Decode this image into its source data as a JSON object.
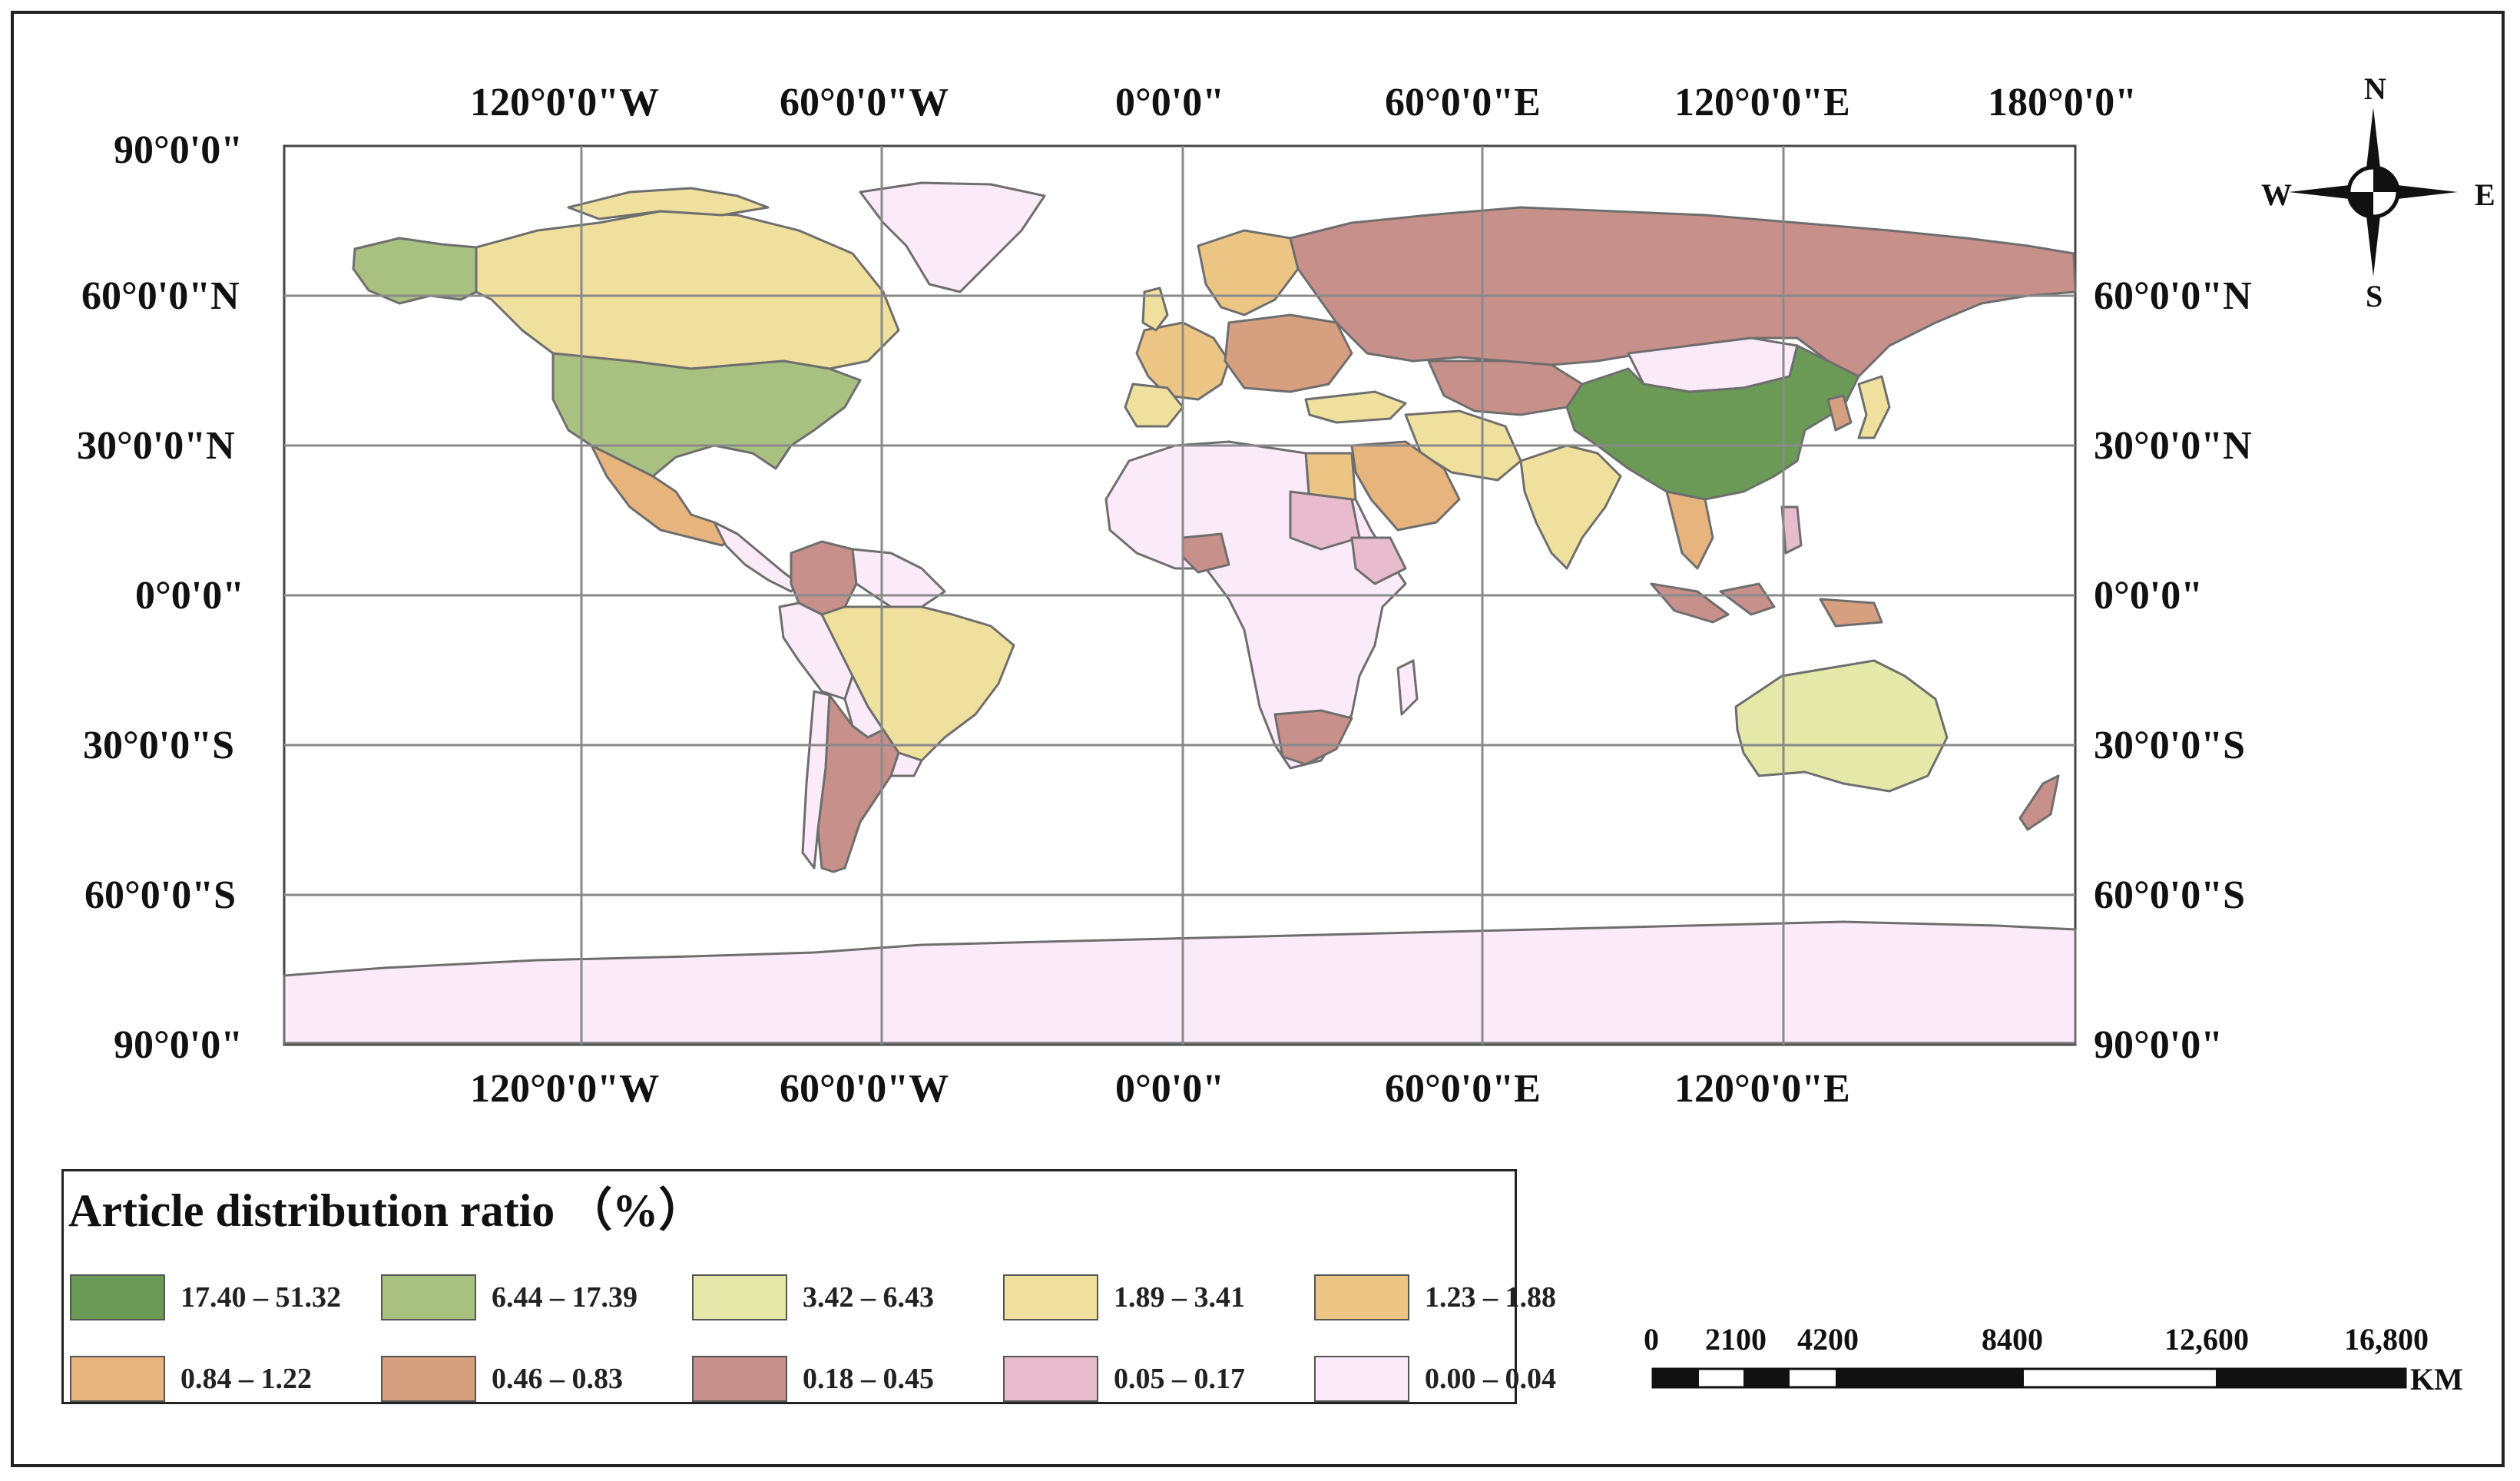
{
  "map": {
    "lon_top_labels": [
      "120°0'0\"W",
      "60°0'0\"W",
      "0°0'0\"",
      "60°0'0\"E",
      "120°0'0\"E",
      "180°0'0\""
    ],
    "lon_bottom_labels": [
      "120°0'0\"W",
      "60°0'0\"W",
      "0°0'0\"",
      "60°0'0\"E",
      "120°0'0\"E"
    ],
    "lat_left_labels": [
      "90°0'0\"",
      "60°0'0\"N",
      "30°0'0\"N",
      "0°0'0\"",
      "30°0'0\"S",
      "60°0'0\"S",
      "90°0'0\""
    ],
    "lat_right_labels": [
      "60°0'0\"N",
      "30°0'0\"N",
      "0°0'0\"",
      "30°0'0\"S",
      "60°0'0\"S",
      "90°0'0\""
    ],
    "colors": {
      "ocean": "#ffffff",
      "border": "#6e6e6e",
      "graticule": "#8a8a8a"
    },
    "regions": [
      {
        "name": "China",
        "class": "17.40 – 51.32"
      },
      {
        "name": "United States",
        "class": "6.44 – 17.39"
      },
      {
        "name": "Alaska",
        "class": "6.44 – 17.39"
      },
      {
        "name": "Australia",
        "class": "3.42 – 6.43"
      },
      {
        "name": "Canada",
        "class": "1.89 – 3.41"
      },
      {
        "name": "Brazil",
        "class": "1.89 – 3.41"
      },
      {
        "name": "India",
        "class": "1.89 – 3.41"
      },
      {
        "name": "Iran",
        "class": "1.89 – 3.41"
      },
      {
        "name": "Egypt",
        "class": "1.23 – 1.88"
      },
      {
        "name": "Mexico",
        "class": "0.84 – 1.22"
      },
      {
        "name": "Saudi Arabia",
        "class": "0.84 – 1.22"
      },
      {
        "name": "Russia",
        "class": "0.18 – 0.45"
      },
      {
        "name": "Argentina",
        "class": "0.18 – 0.45"
      },
      {
        "name": "South Africa",
        "class": "0.18 – 0.45"
      },
      {
        "name": "Colombia",
        "class": "0.18 – 0.45"
      },
      {
        "name": "Nigeria",
        "class": "0.18 – 0.45"
      },
      {
        "name": "Indonesia",
        "class": "0.18 – 0.45"
      },
      {
        "name": "Japan",
        "class": "1.89 – 3.41"
      },
      {
        "name": "Sudan",
        "class": "0.05 – 0.17"
      },
      {
        "name": "Ethiopia",
        "class": "0.05 – 0.17"
      },
      {
        "name": "Kazakhstan",
        "class": "0.18 – 0.45"
      },
      {
        "name": "Mongolia",
        "class": "0.00 – 0.04"
      },
      {
        "name": "Greenland",
        "class": "0.00 – 0.04"
      },
      {
        "name": "Antarctica",
        "class": "0.00 – 0.04"
      },
      {
        "name": "Africa (other)",
        "class": "0.00 – 0.04"
      },
      {
        "name": "South America (other)",
        "class": "0.00 – 0.04"
      }
    ]
  },
  "legend": {
    "title": "Article distribution ratio （%）",
    "items": [
      {
        "label": "17.40 – 51.32",
        "color": "#6b9a57"
      },
      {
        "label": "6.44 – 17.39",
        "color": "#a8c080"
      },
      {
        "label": "3.42 – 6.43",
        "color": "#e4e8a8"
      },
      {
        "label": "1.89 – 3.41",
        "color": "#f0e09e"
      },
      {
        "label": "1.23 – 1.88",
        "color": "#ecc585"
      },
      {
        "label": "0.84 – 1.22",
        "color": "#e6b47c"
      },
      {
        "label": "0.46 – 0.83",
        "color": "#d6a080"
      },
      {
        "label": "0.18 – 0.45",
        "color": "#c8908a"
      },
      {
        "label": "0.05 – 0.17",
        "color": "#e8bccc"
      },
      {
        "label": "0.00 – 0.04",
        "color": "#fbeaf8"
      }
    ]
  },
  "scale_bar": {
    "labels": [
      "0",
      "2100",
      "4200",
      "8400",
      "12,600",
      "16,800"
    ],
    "unit": "KM"
  },
  "compass": {
    "north": "N",
    "south": "S",
    "east": "E",
    "west": "W"
  }
}
